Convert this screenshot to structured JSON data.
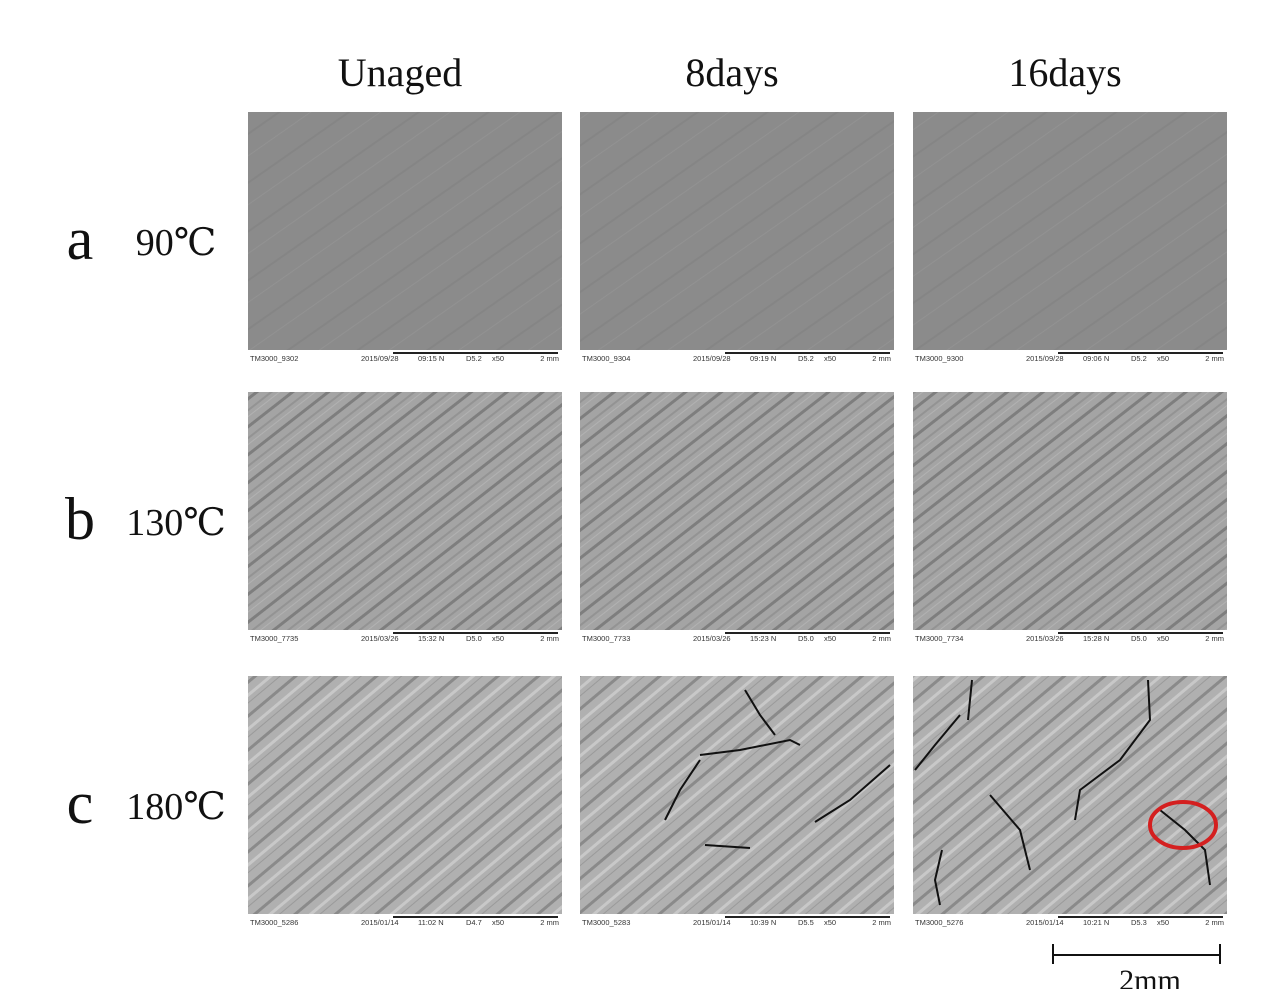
{
  "columns": [
    "Unaged",
    "8days",
    "16days"
  ],
  "rows": [
    {
      "letter": "a",
      "temperature": "90℃",
      "images": [
        {
          "id": "TM3000_9302",
          "date": "2015/09/28",
          "time": "09:15 N",
          "mode": "D5.2",
          "magnification": "x50",
          "scale": "2 mm"
        },
        {
          "id": "TM3000_9304",
          "date": "2015/09/28",
          "time": "09:19 N",
          "mode": "D5.2",
          "magnification": "x50",
          "scale": "2 mm"
        },
        {
          "id": "TM3000_9300",
          "date": "2015/09/28",
          "time": "09:06 N",
          "mode": "D5.2",
          "magnification": "x50",
          "scale": "2 mm"
        }
      ]
    },
    {
      "letter": "b",
      "temperature": "130℃",
      "images": [
        {
          "id": "TM3000_7735",
          "date": "2015/03/26",
          "time": "15:32 N",
          "mode": "D5.0",
          "magnification": "x50",
          "scale": "2 mm"
        },
        {
          "id": "TM3000_7733",
          "date": "2015/03/26",
          "time": "15:23 N",
          "mode": "D5.0",
          "magnification": "x50",
          "scale": "2 mm"
        },
        {
          "id": "TM3000_7734",
          "date": "2015/03/26",
          "time": "15:28 N",
          "mode": "D5.0",
          "magnification": "x50",
          "scale": "2 mm"
        }
      ]
    },
    {
      "letter": "c",
      "temperature": "180℃",
      "images": [
        {
          "id": "TM3000_5286",
          "date": "2015/01/14",
          "time": "11:02 N",
          "mode": "D4.7",
          "magnification": "x50",
          "scale": "2 mm"
        },
        {
          "id": "TM3000_5283",
          "date": "2015/01/14",
          "time": "10:39 N",
          "mode": "D5.5",
          "magnification": "x50",
          "scale": "2 mm"
        },
        {
          "id": "TM3000_5276",
          "date": "2015/01/14",
          "time": "10:21 N",
          "mode": "D5.3",
          "magnification": "x50",
          "scale": "2 mm"
        }
      ]
    }
  ],
  "scale_bar": "2mm"
}
